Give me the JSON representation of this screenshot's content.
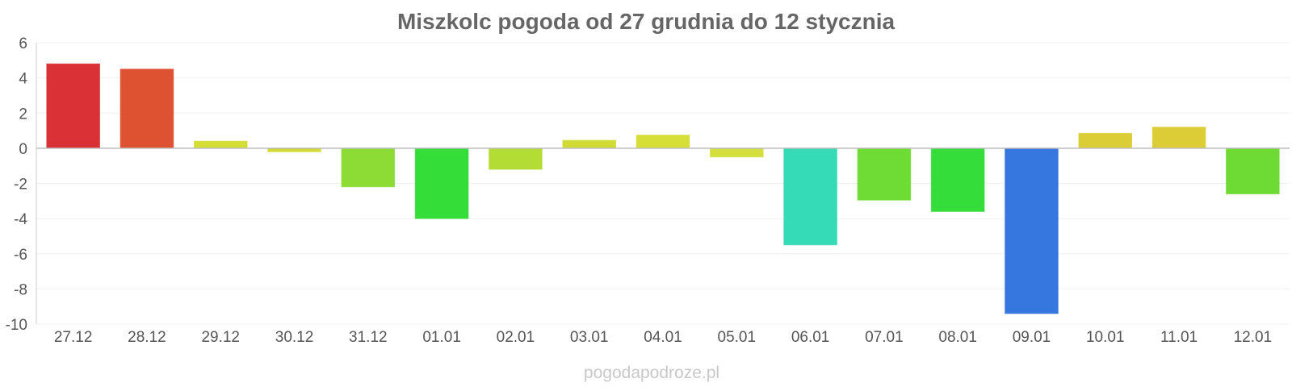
{
  "chart_data": {
    "type": "bar",
    "title": "Miszkolc pogoda od 27 grudnia do 12 stycznia",
    "xlabel": "",
    "ylabel": "",
    "ylim": [
      -10,
      6
    ],
    "yticks": [
      6,
      4,
      2,
      0,
      -2,
      -4,
      -6,
      -8,
      -10
    ],
    "grid": true,
    "legend": "none",
    "categories": [
      "27.12",
      "28.12",
      "29.12",
      "30.12",
      "31.12",
      "01.01",
      "02.01",
      "03.01",
      "04.01",
      "05.01",
      "06.01",
      "07.01",
      "08.01",
      "09.01",
      "10.01",
      "11.01",
      "12.01"
    ],
    "values": [
      4.8,
      4.5,
      0.4,
      -0.2,
      -2.2,
      -4.0,
      -1.2,
      0.45,
      0.75,
      -0.5,
      -5.5,
      -2.95,
      -3.6,
      -9.4,
      0.85,
      1.2,
      -2.6
    ],
    "colors": [
      "#d93136",
      "#de5232",
      "#d2dd35",
      "#d5db34",
      "#8ddc35",
      "#35dd39",
      "#b3dd35",
      "#d0db33",
      "#d6df37",
      "#d3df3b",
      "#35dbb6",
      "#6edc34",
      "#35dd3a",
      "#3577de",
      "#dbcd35",
      "#dccd36",
      "#6edb34"
    ]
  },
  "footer": {
    "watermark": "pogodapodroze.pl"
  }
}
